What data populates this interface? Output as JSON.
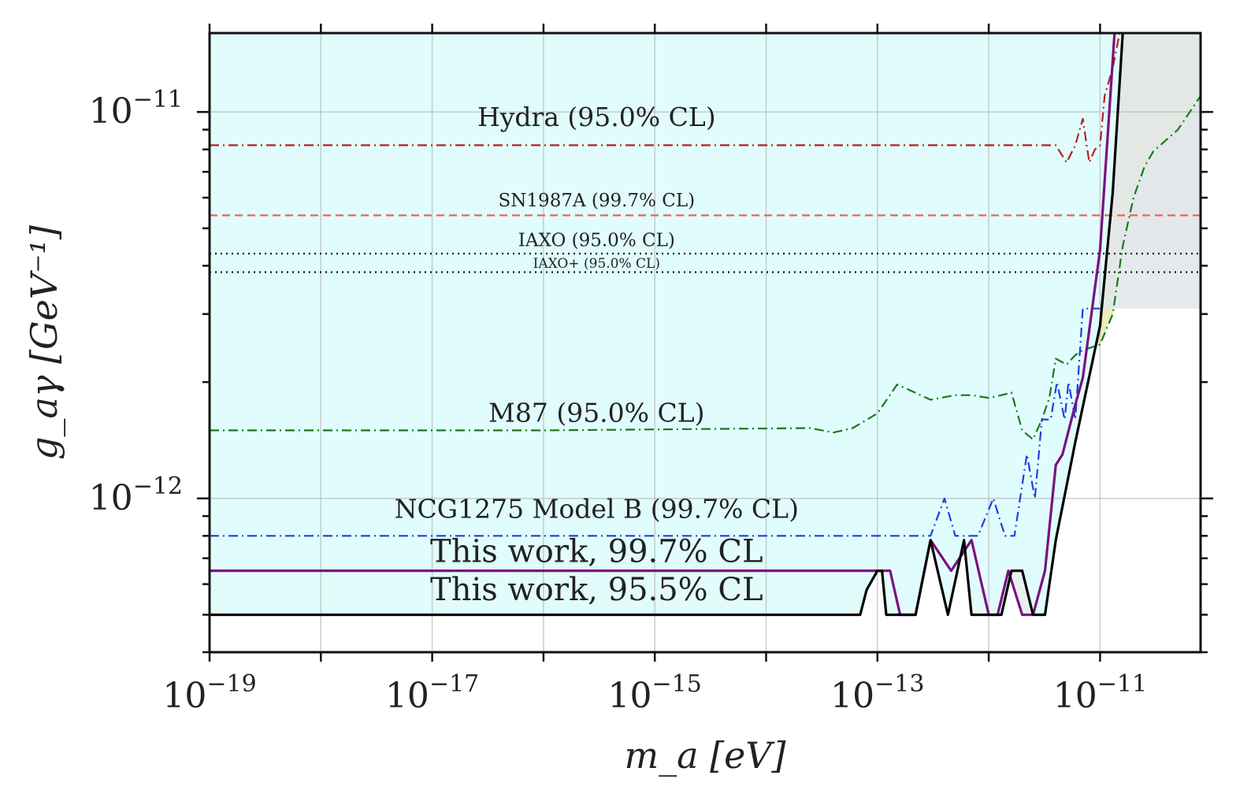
{
  "chart_data": {
    "type": "line",
    "title": "",
    "xlabel": "m_a [eV]",
    "ylabel": "g_aγ [GeV⁻¹]",
    "xscale": "log",
    "yscale": "log",
    "xlim": [
      1e-19,
      8e-11
    ],
    "ylim": [
      4e-13,
      1.6e-11
    ],
    "grid": true,
    "x_ticks": [
      {
        "value": 1e-19,
        "base": "10",
        "exp": "−19"
      },
      {
        "value": 1e-17,
        "base": "10",
        "exp": "−17"
      },
      {
        "value": 1e-15,
        "base": "10",
        "exp": "−15"
      },
      {
        "value": 1e-13,
        "base": "10",
        "exp": "−13"
      },
      {
        "value": 1e-11,
        "base": "10",
        "exp": "−11"
      }
    ],
    "y_ticks": [
      {
        "value": 1e-11,
        "base": "10",
        "exp": "−11"
      },
      {
        "value": 1e-12,
        "base": "10",
        "exp": "−12"
      }
    ],
    "series": [
      {
        "name": "Hydra (95.0% CL)",
        "color": "#b22222",
        "dash": "dashdot",
        "fill": "#c8a67a",
        "fill_opacity": 0.75,
        "label_at": [
          3e-16,
          9.2e-12
        ],
        "x": [
          1e-19,
          1e-12,
          4e-12,
          5e-12,
          6e-12,
          7e-12,
          8e-12,
          9e-12,
          1e-11,
          1.1e-11,
          1.3e-11,
          1.5e-11
        ],
        "y": [
          8.2e-12,
          8.2e-12,
          8.2e-12,
          7.4e-12,
          8.2e-12,
          9.6e-12,
          7.4e-12,
          8e-12,
          8.2e-12,
          1.1e-11,
          1.3e-11,
          1.6e-11
        ]
      },
      {
        "name": "SN1987A (99.7% CL)",
        "color": "#f06060",
        "dash": "dashed",
        "fill": "#e8b0a8",
        "fill_opacity": 0.35,
        "label_at": [
          3e-16,
          5.7e-12
        ],
        "x": [
          1e-19,
          8e-11
        ],
        "y": [
          5.4e-12,
          5.4e-12
        ]
      },
      {
        "name": "IAXO (95.0% CL)",
        "color": "#111111",
        "dash": "dotted",
        "fill": "#dddddd",
        "fill_opacity": 0.45,
        "label_at": [
          3e-16,
          4.5e-12
        ],
        "x": [
          1e-19,
          8e-11
        ],
        "y": [
          4.3e-12,
          4.3e-12
        ]
      },
      {
        "name": "IAXO+ (95.0% CL)",
        "color": "#111111",
        "dash": "dotted",
        "fill": "#dddddd",
        "fill_opacity": 0.35,
        "label_at": [
          3e-16,
          3.95e-12
        ],
        "x": [
          1e-19,
          8e-11
        ],
        "y": [
          3.85e-12,
          3.85e-12
        ]
      },
      {
        "name": "M87 (95.0% CL)",
        "color": "#1a7a1a",
        "dash": "dashdot",
        "fill": "#e6e8b4",
        "fill_opacity": 0.85,
        "label_at": [
          3e-16,
          1.58e-12
        ],
        "x": [
          1e-19,
          1e-16,
          2.5e-14,
          4e-14,
          6e-14,
          1e-13,
          1.5e-13,
          2e-13,
          3e-13,
          5e-13,
          7e-13,
          1e-12,
          1.3e-12,
          1.6e-12,
          2e-12,
          2.5e-12,
          3e-12,
          3.5e-12,
          4e-12,
          5e-12,
          6e-12,
          7e-12,
          1e-11,
          1.3e-11,
          1.6e-11,
          2e-11,
          2.5e-11,
          3e-11,
          5e-11,
          8e-11
        ],
        "y": [
          1.5e-12,
          1.5e-12,
          1.52e-12,
          1.48e-12,
          1.52e-12,
          1.66e-12,
          1.97e-12,
          1.9e-12,
          1.8e-12,
          1.85e-12,
          1.85e-12,
          1.82e-12,
          1.85e-12,
          1.88e-12,
          1.5e-12,
          1.42e-12,
          1.6e-12,
          1.82e-12,
          2.3e-12,
          2.22e-12,
          2.35e-12,
          2.42e-12,
          2.5e-12,
          3e-12,
          4.5e-12,
          6e-12,
          7.2e-12,
          7.9e-12,
          9e-12,
          1.1e-11
        ]
      },
      {
        "name": "NCG1275 Model B (99.7% CL)",
        "color": "#1f3fe0",
        "dash": "dashdot",
        "fill": "#e2e8ea",
        "fill_opacity": 0.9,
        "label_at": [
          3e-16,
          8.9e-13
        ],
        "x": [
          1e-19,
          3e-13,
          4e-13,
          5e-13,
          8e-13,
          1.1e-12,
          1.4e-12,
          1.7e-12,
          2.2e-12,
          2.6e-12,
          3e-12,
          3.6e-12,
          4.1e-12,
          4.8e-12,
          5.2e-12,
          6e-12,
          7e-12,
          8.5e-12,
          1e-11
        ],
        "y": [
          8e-13,
          8e-13,
          1e-12,
          8e-13,
          8e-13,
          1e-12,
          8e-13,
          8e-13,
          1.3e-12,
          1e-12,
          1.6e-12,
          1.6e-12,
          2e-12,
          1.6e-12,
          2e-12,
          1.6e-12,
          3.1e-12,
          3.1e-12,
          3.1e-12
        ]
      },
      {
        "name": "This work, 99.7% CL",
        "color": "#7a1080",
        "dash": "solid",
        "fill": "#e4eef0",
        "fill_opacity": 0.9,
        "label_at": [
          3e-16,
          6.85e-13
        ],
        "x": [
          1e-19,
          1.3e-13,
          1.6e-13,
          2.2e-13,
          3e-13,
          4.6e-13,
          7e-13,
          1e-12,
          1.2e-12,
          1.5e-12,
          2e-12,
          2.5e-12,
          3.2e-12,
          4e-12,
          4.6e-12,
          6e-12,
          7e-12,
          1e-11,
          1.35e-11
        ],
        "y": [
          6.5e-13,
          6.5e-13,
          5e-13,
          5e-13,
          7.8e-13,
          6.5e-13,
          7.8e-13,
          5e-13,
          5e-13,
          6.5e-13,
          5e-13,
          5e-13,
          6.5e-13,
          1.22e-12,
          1.3e-12,
          1.75e-12,
          2.05e-12,
          4.4e-12,
          1.6e-11
        ]
      },
      {
        "name": "This work, 95.5% CL",
        "color": "#000000",
        "dash": "solid",
        "fill": "#e0fcfc",
        "fill_opacity": 0.95,
        "label_at": [
          3e-16,
          5.45e-13
        ],
        "x": [
          1e-19,
          7e-14,
          8e-14,
          1e-13,
          1.1e-13,
          1.2e-13,
          1.6e-13,
          2.2e-13,
          3e-13,
          4.3e-13,
          6e-13,
          7e-13,
          1e-12,
          1.3e-12,
          1.6e-12,
          2e-12,
          2.5e-12,
          3.2e-12,
          4e-12,
          6e-12,
          1e-11,
          1.3e-11,
          1.6e-11
        ],
        "y": [
          5e-13,
          5e-13,
          5.8e-13,
          6.5e-13,
          6.5e-13,
          5e-13,
          5e-13,
          5e-13,
          7.8e-13,
          5e-13,
          7.8e-13,
          5e-13,
          5e-13,
          5e-13,
          6.5e-13,
          6.5e-13,
          5e-13,
          5e-13,
          7.8e-13,
          1.4e-12,
          2.8e-12,
          6.2e-12,
          1.6e-11
        ]
      }
    ]
  }
}
